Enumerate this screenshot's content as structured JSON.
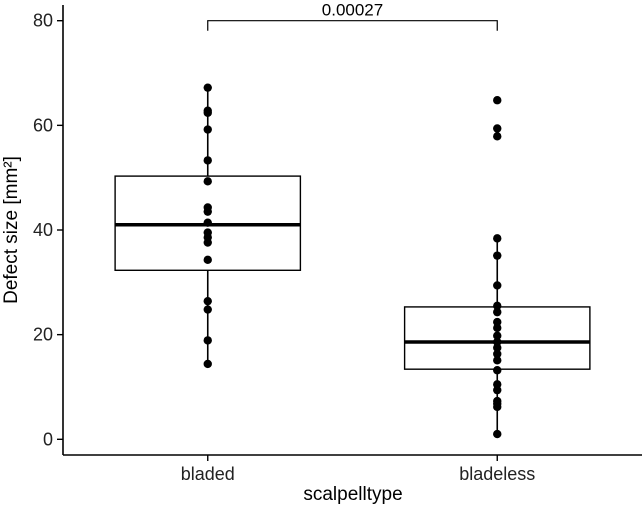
{
  "chart_data": {
    "type": "box",
    "xlabel": "scalpelltype",
    "ylabel": "Defect size [mm²]",
    "ylim": [
      -3,
      83
    ],
    "yticks": [
      "0",
      "20",
      "40",
      "60",
      "80"
    ],
    "categories": [
      "bladed",
      "bladeless"
    ],
    "grid": false,
    "boxes": [
      {
        "name": "bladed",
        "q1": 32.3,
        "median": 41.0,
        "q3": 50.3,
        "whisker_low": 14.4,
        "whisker_high": 67.2,
        "points": [
          67.2,
          62.8,
          62.4,
          59.2,
          53.3,
          49.3,
          44.3,
          43.5,
          41.4,
          39.5,
          38.6,
          37.6,
          34.3,
          26.4,
          24.8,
          18.9,
          14.4
        ]
      },
      {
        "name": "bladeless",
        "q1": 13.4,
        "median": 18.6,
        "q3": 25.3,
        "whisker_low": 1.0,
        "whisker_high": 38.4,
        "points": [
          64.8,
          59.4,
          57.9,
          38.4,
          35.1,
          29.4,
          25.5,
          24.3,
          22.4,
          21.3,
          19.8,
          18.6,
          17.5,
          16.3,
          15.1,
          13.2,
          10.5,
          9.4,
          7.3,
          6.8,
          6.2,
          1.0
        ]
      }
    ],
    "annotations": [
      {
        "text": "0.00027",
        "between": [
          "bladed",
          "bladeless"
        ],
        "y": 80
      }
    ]
  }
}
